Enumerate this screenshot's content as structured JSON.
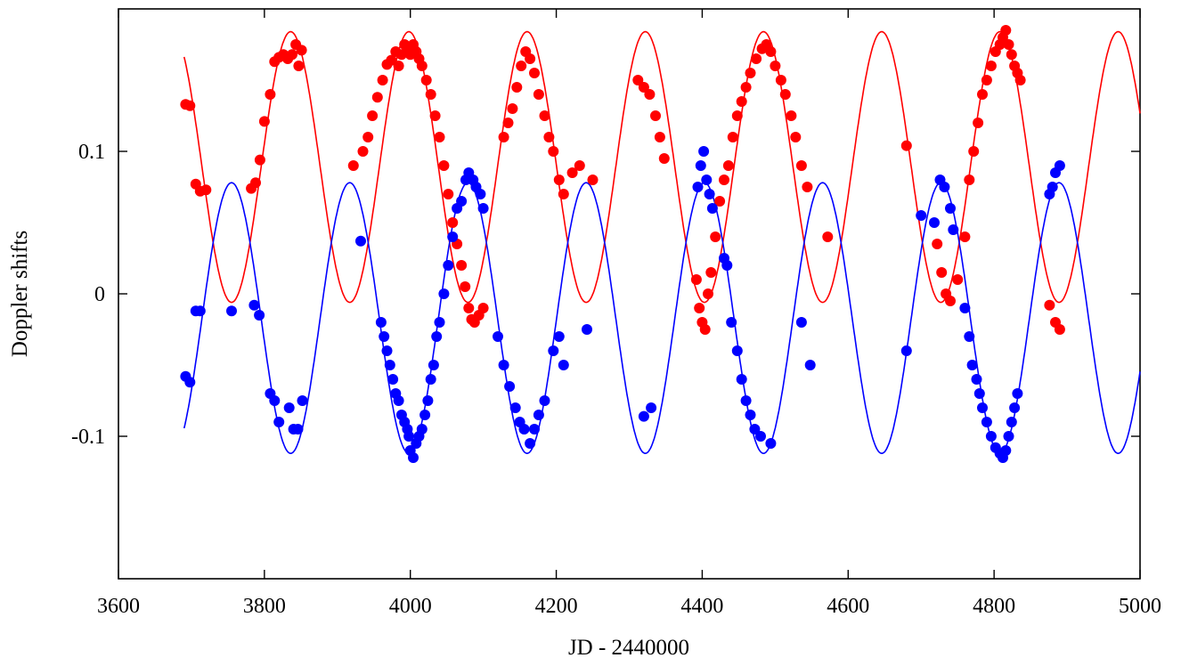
{
  "chart_data": {
    "type": "scatter",
    "title": "",
    "xlabel": "JD - 2440000",
    "ylabel": "Doppler shifts",
    "xlim": [
      3600,
      5000
    ],
    "ylim": [
      -0.2,
      0.2
    ],
    "x_ticks": [
      3600,
      3800,
      4000,
      4200,
      4400,
      4600,
      4800,
      5000
    ],
    "x_tick_labels": [
      "3600",
      "3800",
      "4000",
      "4200",
      "4400",
      "4600",
      "4800",
      "5000"
    ],
    "y_ticks": [
      -0.1,
      0,
      0.1
    ],
    "y_tick_labels": [
      "-0.1",
      "0",
      "0.1"
    ],
    "grid": false,
    "legend": false,
    "series": [
      {
        "color": "#ff0000",
        "model": {
          "period_days": 162,
          "mean": 0.089,
          "amplitude": 0.095,
          "peak_jd": 3836,
          "x_range": [
            3690,
            5000
          ]
        },
        "points": [
          [
            3692,
            0.133
          ],
          [
            3698,
            0.132
          ],
          [
            3706,
            0.077
          ],
          [
            3712,
            0.072
          ],
          [
            3720,
            0.073
          ],
          [
            3782,
            0.074
          ],
          [
            3788,
            0.078
          ],
          [
            3794,
            0.094
          ],
          [
            3800,
            0.121
          ],
          [
            3808,
            0.14
          ],
          [
            3814,
            0.163
          ],
          [
            3820,
            0.166
          ],
          [
            3826,
            0.168
          ],
          [
            3832,
            0.165
          ],
          [
            3838,
            0.168
          ],
          [
            3843,
            0.175
          ],
          [
            3847,
            0.16
          ],
          [
            3851,
            0.171
          ],
          [
            3922,
            0.09
          ],
          [
            3935,
            0.1
          ],
          [
            3942,
            0.11
          ],
          [
            3948,
            0.125
          ],
          [
            3955,
            0.138
          ],
          [
            3962,
            0.15
          ],
          [
            3968,
            0.161
          ],
          [
            3974,
            0.164
          ],
          [
            3980,
            0.17
          ],
          [
            3984,
            0.16
          ],
          [
            3988,
            0.168
          ],
          [
            3992,
            0.175
          ],
          [
            3996,
            0.172
          ],
          [
            4000,
            0.168
          ],
          [
            4004,
            0.175
          ],
          [
            4008,
            0.17
          ],
          [
            4012,
            0.165
          ],
          [
            4016,
            0.16
          ],
          [
            4022,
            0.15
          ],
          [
            4028,
            0.14
          ],
          [
            4034,
            0.125
          ],
          [
            4040,
            0.11
          ],
          [
            4046,
            0.09
          ],
          [
            4052,
            0.07
          ],
          [
            4058,
            0.05
          ],
          [
            4064,
            0.035
          ],
          [
            4070,
            0.02
          ],
          [
            4075,
            0.005
          ],
          [
            4080,
            -0.01
          ],
          [
            4084,
            -0.018
          ],
          [
            4088,
            -0.02
          ],
          [
            4094,
            -0.015
          ],
          [
            4100,
            -0.01
          ],
          [
            4128,
            0.11
          ],
          [
            4134,
            0.12
          ],
          [
            4140,
            0.13
          ],
          [
            4146,
            0.145
          ],
          [
            4152,
            0.16
          ],
          [
            4158,
            0.17
          ],
          [
            4164,
            0.165
          ],
          [
            4170,
            0.155
          ],
          [
            4176,
            0.14
          ],
          [
            4184,
            0.125
          ],
          [
            4190,
            0.11
          ],
          [
            4196,
            0.1
          ],
          [
            4204,
            0.08
          ],
          [
            4210,
            0.07
          ],
          [
            4222,
            0.085
          ],
          [
            4232,
            0.09
          ],
          [
            4250,
            0.08
          ],
          [
            4312,
            0.15
          ],
          [
            4320,
            0.145
          ],
          [
            4328,
            0.14
          ],
          [
            4336,
            0.125
          ],
          [
            4342,
            0.11
          ],
          [
            4348,
            0.095
          ],
          [
            4392,
            0.01
          ],
          [
            4396,
            -0.01
          ],
          [
            4400,
            -0.02
          ],
          [
            4404,
            -0.025
          ],
          [
            4408,
            0.0
          ],
          [
            4412,
            0.015
          ],
          [
            4418,
            0.04
          ],
          [
            4424,
            0.065
          ],
          [
            4430,
            0.08
          ],
          [
            4436,
            0.09
          ],
          [
            4442,
            0.11
          ],
          [
            4448,
            0.125
          ],
          [
            4454,
            0.135
          ],
          [
            4460,
            0.145
          ],
          [
            4466,
            0.155
          ],
          [
            4474,
            0.165
          ],
          [
            4482,
            0.172
          ],
          [
            4488,
            0.175
          ],
          [
            4494,
            0.17
          ],
          [
            4500,
            0.16
          ],
          [
            4508,
            0.15
          ],
          [
            4514,
            0.14
          ],
          [
            4522,
            0.125
          ],
          [
            4528,
            0.11
          ],
          [
            4536,
            0.09
          ],
          [
            4544,
            0.075
          ],
          [
            4572,
            0.04
          ],
          [
            4680,
            0.104
          ],
          [
            4722,
            0.035
          ],
          [
            4728,
            0.015
          ],
          [
            4734,
            0.0
          ],
          [
            4740,
            -0.005
          ],
          [
            4750,
            0.01
          ],
          [
            4760,
            0.04
          ],
          [
            4766,
            0.08
          ],
          [
            4772,
            0.1
          ],
          [
            4778,
            0.12
          ],
          [
            4784,
            0.14
          ],
          [
            4790,
            0.15
          ],
          [
            4796,
            0.16
          ],
          [
            4802,
            0.17
          ],
          [
            4808,
            0.175
          ],
          [
            4812,
            0.18
          ],
          [
            4816,
            0.185
          ],
          [
            4820,
            0.175
          ],
          [
            4824,
            0.168
          ],
          [
            4828,
            0.16
          ],
          [
            4832,
            0.155
          ],
          [
            4836,
            0.15
          ],
          [
            4876,
            -0.008
          ],
          [
            4884,
            -0.02
          ],
          [
            4890,
            -0.025
          ]
        ]
      },
      {
        "color": "#0000ff",
        "model": {
          "period_days": 162,
          "mean": -0.017,
          "amplitude": 0.095,
          "peak_jd": 3755,
          "x_range": [
            3690,
            5000
          ]
        },
        "points": [
          [
            3692,
            -0.058
          ],
          [
            3698,
            -0.062
          ],
          [
            3706,
            -0.012
          ],
          [
            3712,
            -0.012
          ],
          [
            3755,
            -0.012
          ],
          [
            3786,
            -0.008
          ],
          [
            3793,
            -0.015
          ],
          [
            3808,
            -0.07
          ],
          [
            3814,
            -0.075
          ],
          [
            3820,
            -0.09
          ],
          [
            3834,
            -0.08
          ],
          [
            3840,
            -0.095
          ],
          [
            3846,
            -0.095
          ],
          [
            3852,
            -0.075
          ],
          [
            3932,
            0.037
          ],
          [
            3960,
            -0.02
          ],
          [
            3964,
            -0.03
          ],
          [
            3968,
            -0.04
          ],
          [
            3972,
            -0.05
          ],
          [
            3976,
            -0.06
          ],
          [
            3980,
            -0.07
          ],
          [
            3984,
            -0.075
          ],
          [
            3988,
            -0.085
          ],
          [
            3992,
            -0.09
          ],
          [
            3996,
            -0.095
          ],
          [
            3998,
            -0.1
          ],
          [
            4000,
            -0.11
          ],
          [
            4004,
            -0.115
          ],
          [
            4008,
            -0.105
          ],
          [
            4012,
            -0.1
          ],
          [
            4016,
            -0.095
          ],
          [
            4020,
            -0.085
          ],
          [
            4024,
            -0.075
          ],
          [
            4028,
            -0.06
          ],
          [
            4032,
            -0.05
          ],
          [
            4036,
            -0.03
          ],
          [
            4040,
            -0.02
          ],
          [
            4046,
            0.0
          ],
          [
            4052,
            0.02
          ],
          [
            4058,
            0.04
          ],
          [
            4064,
            0.06
          ],
          [
            4070,
            0.065
          ],
          [
            4076,
            0.08
          ],
          [
            4080,
            0.085
          ],
          [
            4086,
            0.08
          ],
          [
            4090,
            0.075
          ],
          [
            4096,
            0.07
          ],
          [
            4100,
            0.06
          ],
          [
            4120,
            -0.03
          ],
          [
            4128,
            -0.05
          ],
          [
            4136,
            -0.065
          ],
          [
            4144,
            -0.08
          ],
          [
            4150,
            -0.09
          ],
          [
            4156,
            -0.095
          ],
          [
            4164,
            -0.105
          ],
          [
            4170,
            -0.095
          ],
          [
            4176,
            -0.085
          ],
          [
            4184,
            -0.075
          ],
          [
            4196,
            -0.04
          ],
          [
            4204,
            -0.03
          ],
          [
            4210,
            -0.05
          ],
          [
            4242,
            -0.025
          ],
          [
            4320,
            -0.086
          ],
          [
            4330,
            -0.08
          ],
          [
            4394,
            0.075
          ],
          [
            4398,
            0.09
          ],
          [
            4402,
            0.1
          ],
          [
            4406,
            0.08
          ],
          [
            4410,
            0.07
          ],
          [
            4414,
            0.06
          ],
          [
            4430,
            0.025
          ],
          [
            4434,
            0.02
          ],
          [
            4440,
            -0.02
          ],
          [
            4448,
            -0.04
          ],
          [
            4454,
            -0.06
          ],
          [
            4460,
            -0.075
          ],
          [
            4466,
            -0.085
          ],
          [
            4472,
            -0.095
          ],
          [
            4480,
            -0.1
          ],
          [
            4494,
            -0.105
          ],
          [
            4536,
            -0.02
          ],
          [
            4548,
            -0.05
          ],
          [
            4680,
            -0.04
          ],
          [
            4700,
            0.055
          ],
          [
            4718,
            0.05
          ],
          [
            4726,
            0.08
          ],
          [
            4732,
            0.075
          ],
          [
            4740,
            0.06
          ],
          [
            4744,
            0.045
          ],
          [
            4760,
            -0.01
          ],
          [
            4766,
            -0.03
          ],
          [
            4770,
            -0.05
          ],
          [
            4776,
            -0.06
          ],
          [
            4780,
            -0.07
          ],
          [
            4784,
            -0.08
          ],
          [
            4790,
            -0.09
          ],
          [
            4796,
            -0.1
          ],
          [
            4802,
            -0.108
          ],
          [
            4808,
            -0.112
          ],
          [
            4812,
            -0.115
          ],
          [
            4816,
            -0.11
          ],
          [
            4820,
            -0.1
          ],
          [
            4824,
            -0.09
          ],
          [
            4828,
            -0.08
          ],
          [
            4832,
            -0.07
          ],
          [
            4876,
            0.07
          ],
          [
            4880,
            0.075
          ],
          [
            4884,
            0.085
          ],
          [
            4890,
            0.09
          ]
        ]
      }
    ]
  }
}
